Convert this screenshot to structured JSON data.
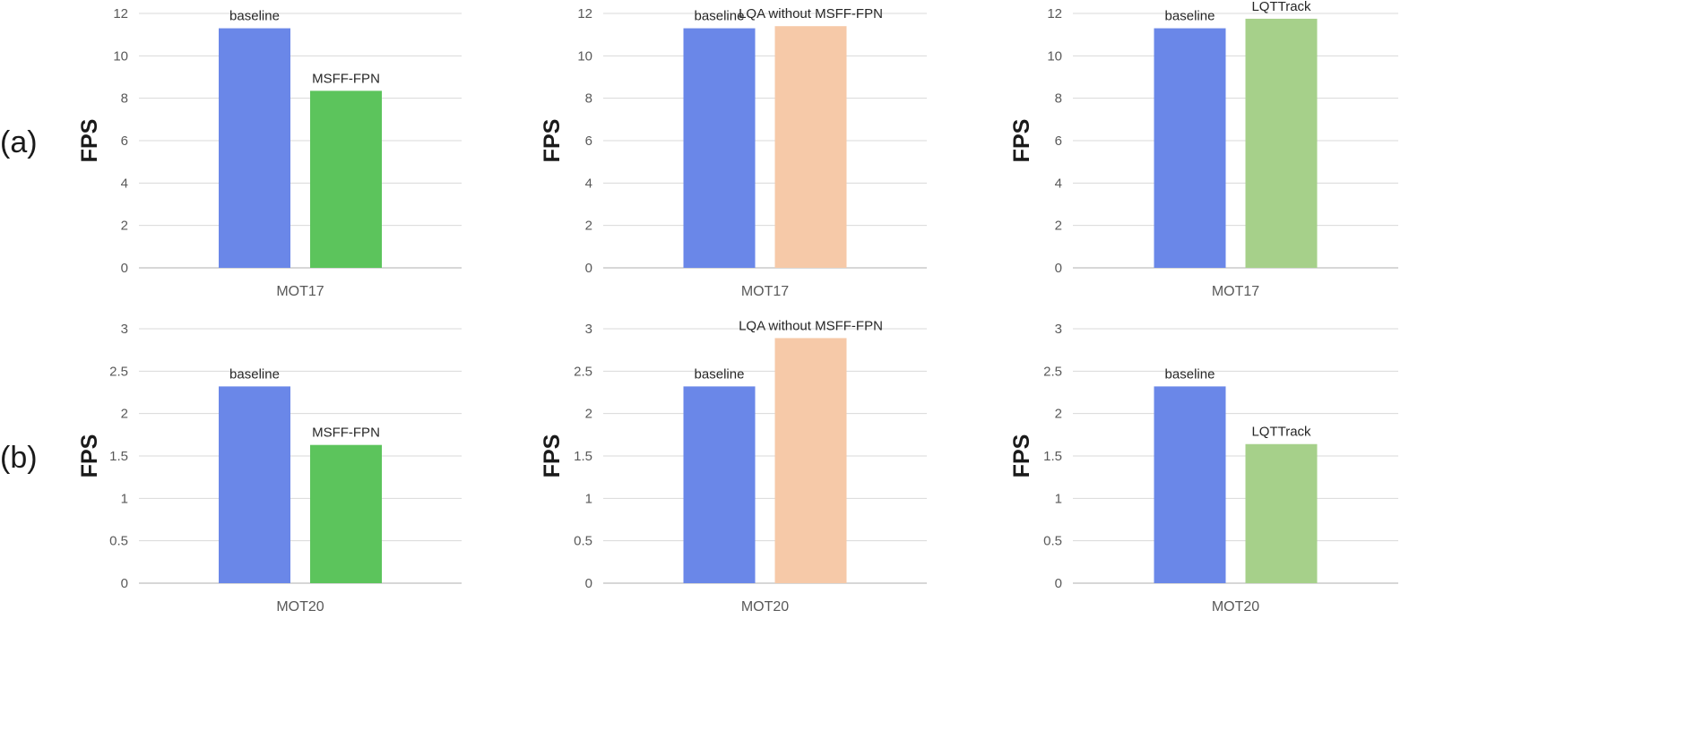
{
  "row_labels": [
    "(a)",
    "(b)"
  ],
  "chart_data": [
    {
      "type": "bar",
      "row": 0,
      "col": 0,
      "categories": [
        "MOT17"
      ],
      "ylabel": "FPS",
      "ylim": [
        0,
        12
      ],
      "yticks": [
        0,
        2,
        4,
        6,
        8,
        10,
        12
      ],
      "grid": true,
      "series": [
        {
          "name": "baseline",
          "values": [
            11.3
          ],
          "color": "#6a87e8"
        },
        {
          "name": "MSFF-FPN",
          "values": [
            8.35
          ],
          "color": "#5cc45c"
        }
      ]
    },
    {
      "type": "bar",
      "row": 0,
      "col": 1,
      "categories": [
        "MOT17"
      ],
      "ylabel": "FPS",
      "ylim": [
        0,
        12
      ],
      "yticks": [
        0,
        2,
        4,
        6,
        8,
        10,
        12
      ],
      "grid": true,
      "series": [
        {
          "name": "baseline",
          "values": [
            11.3
          ],
          "color": "#6a87e8"
        },
        {
          "name": "LQA without MSFF-FPN",
          "values": [
            11.4
          ],
          "color": "#f6c9a8"
        }
      ]
    },
    {
      "type": "bar",
      "row": 0,
      "col": 2,
      "categories": [
        "MOT17"
      ],
      "ylabel": "FPS",
      "ylim": [
        0,
        12
      ],
      "yticks": [
        0,
        2,
        4,
        6,
        8,
        10,
        12
      ],
      "grid": true,
      "series": [
        {
          "name": "baseline",
          "values": [
            11.3
          ],
          "color": "#6a87e8"
        },
        {
          "name": "LQTTrack",
          "values": [
            11.75
          ],
          "color": "#a6d08a"
        }
      ]
    },
    {
      "type": "bar",
      "row": 1,
      "col": 0,
      "categories": [
        "MOT20"
      ],
      "ylabel": "FPS",
      "ylim": [
        0,
        3
      ],
      "yticks": [
        0,
        0.5,
        1,
        1.5,
        2,
        2.5,
        3
      ],
      "grid": true,
      "series": [
        {
          "name": "baseline",
          "values": [
            2.32
          ],
          "color": "#6a87e8"
        },
        {
          "name": "MSFF-FPN",
          "values": [
            1.63
          ],
          "color": "#5cc45c"
        }
      ]
    },
    {
      "type": "bar",
      "row": 1,
      "col": 1,
      "categories": [
        "MOT20"
      ],
      "ylabel": "FPS",
      "ylim": [
        0,
        3
      ],
      "yticks": [
        0,
        0.5,
        1,
        1.5,
        2,
        2.5,
        3
      ],
      "grid": true,
      "series": [
        {
          "name": "baseline",
          "values": [
            2.32
          ],
          "color": "#6a87e8"
        },
        {
          "name": "LQA without MSFF-FPN",
          "values": [
            2.89
          ],
          "color": "#f6c9a8"
        }
      ]
    },
    {
      "type": "bar",
      "row": 1,
      "col": 2,
      "categories": [
        "MOT20"
      ],
      "ylabel": "FPS",
      "ylim": [
        0,
        3
      ],
      "yticks": [
        0,
        0.5,
        1,
        1.5,
        2,
        2.5,
        3
      ],
      "grid": true,
      "series": [
        {
          "name": "baseline",
          "values": [
            2.32
          ],
          "color": "#6a87e8"
        },
        {
          "name": "LQTTrack",
          "values": [
            1.64
          ],
          "color": "#a6d08a"
        }
      ]
    }
  ]
}
